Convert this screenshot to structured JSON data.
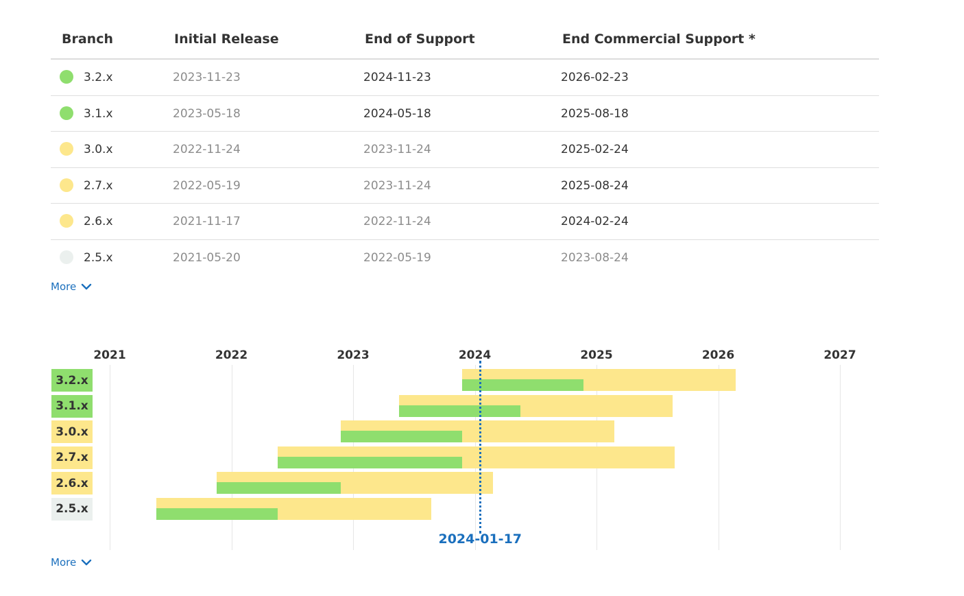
{
  "colors": {
    "active": "#8fde6e",
    "security": "#fde78c",
    "eol": "#ebf0ee",
    "link": "#1a6fbd",
    "today": "#1a6fbd"
  },
  "table": {
    "headers": [
      "Branch",
      "Initial Release",
      "End of Support",
      "End Commercial Support *"
    ],
    "rows": [
      {
        "branch": "3.2.x",
        "status": "active",
        "initial": "2023-11-23",
        "eos": "2024-11-23",
        "ecs": "2026-02-23",
        "initial_past": true,
        "eos_past": false,
        "ecs_past": false
      },
      {
        "branch": "3.1.x",
        "status": "active",
        "initial": "2023-05-18",
        "eos": "2024-05-18",
        "ecs": "2025-08-18",
        "initial_past": true,
        "eos_past": false,
        "ecs_past": false
      },
      {
        "branch": "3.0.x",
        "status": "security",
        "initial": "2022-11-24",
        "eos": "2023-11-24",
        "ecs": "2025-02-24",
        "initial_past": true,
        "eos_past": true,
        "ecs_past": false
      },
      {
        "branch": "2.7.x",
        "status": "security",
        "initial": "2022-05-19",
        "eos": "2023-11-24",
        "ecs": "2025-08-24",
        "initial_past": true,
        "eos_past": true,
        "ecs_past": false
      },
      {
        "branch": "2.6.x",
        "status": "security",
        "initial": "2021-11-17",
        "eos": "2022-11-24",
        "ecs": "2024-02-24",
        "initial_past": true,
        "eos_past": true,
        "ecs_past": false
      },
      {
        "branch": "2.5.x",
        "status": "eol",
        "initial": "2021-05-20",
        "eos": "2022-05-19",
        "ecs": "2023-08-24",
        "initial_past": true,
        "eos_past": true,
        "ecs_past": true
      }
    ],
    "more_label": "More"
  },
  "gantt": {
    "years": [
      "2021",
      "2022",
      "2023",
      "2024",
      "2025",
      "2026",
      "2027"
    ],
    "today": "2024-01-17",
    "more_label": "More",
    "chevron_icon": "chevron-down-icon"
  }
}
